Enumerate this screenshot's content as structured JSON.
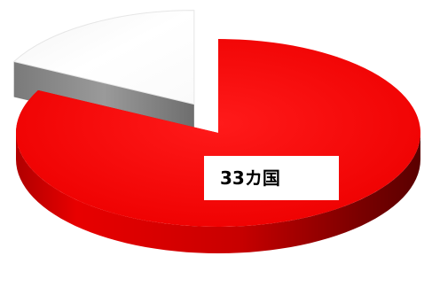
{
  "chart_data": {
    "type": "pie",
    "style": "3d-exploded",
    "slices": [
      {
        "value": 33,
        "label": "33カ国",
        "color": "#ff0000",
        "show_label": true
      },
      {
        "value": 7,
        "label": "",
        "color": "#ffffff",
        "side_color": "#8a8a8a",
        "show_label": false
      }
    ],
    "title": "",
    "legend": "none"
  }
}
